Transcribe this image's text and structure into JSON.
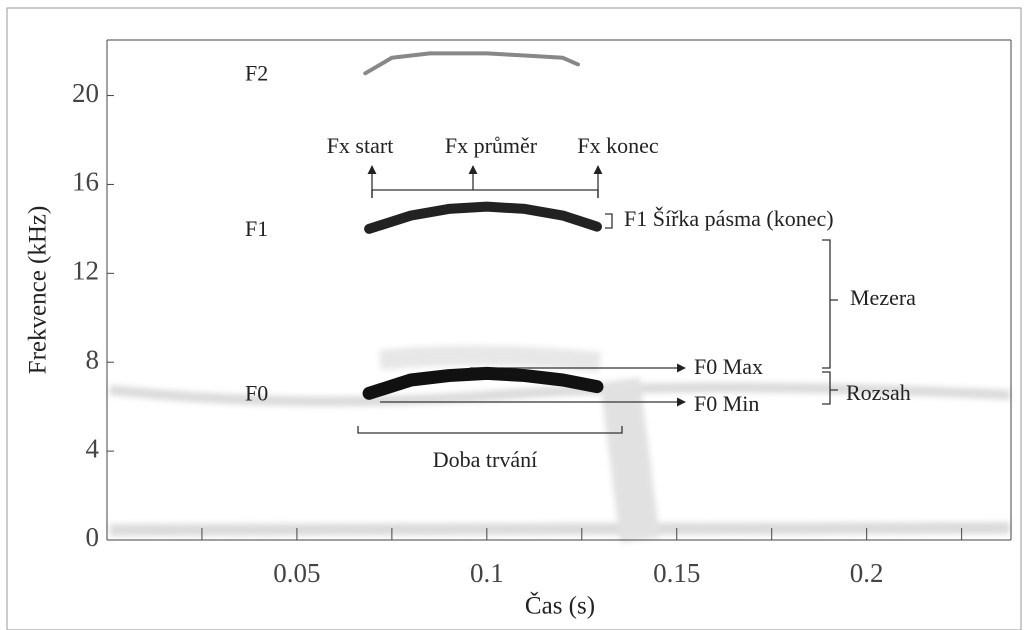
{
  "chart_data": {
    "type": "line",
    "xlabel": "Čas (s)",
    "ylabel": "Frekvence (kHz)",
    "xlim": [
      0,
      0.238
    ],
    "xticks": [
      0.05,
      0.1,
      0.15,
      0.2
    ],
    "xminorticks": [
      0.025,
      0.075,
      0.125,
      0.175,
      0.225
    ],
    "ylim": [
      0,
      22.5
    ],
    "yticks": [
      0,
      4,
      8,
      12,
      16,
      20
    ],
    "series": [
      {
        "name": "F0",
        "color": "#111111",
        "x": [
          0.069,
          0.08,
          0.09,
          0.1,
          0.11,
          0.12,
          0.129
        ],
        "values": [
          6.6,
          7.2,
          7.4,
          7.5,
          7.4,
          7.2,
          6.9
        ]
      },
      {
        "name": "F1",
        "color": "#222222",
        "x": [
          0.069,
          0.08,
          0.09,
          0.1,
          0.11,
          0.12,
          0.129
        ],
        "values": [
          14.0,
          14.6,
          14.9,
          15.0,
          14.9,
          14.6,
          14.1
        ]
      },
      {
        "name": "F2",
        "color": "#888888",
        "x": [
          0.068,
          0.075,
          0.085,
          0.1,
          0.11,
          0.12,
          0.124
        ],
        "values": [
          21.0,
          21.7,
          21.9,
          21.9,
          21.8,
          21.7,
          21.4
        ]
      }
    ],
    "annotations": [
      "Fx start",
      "Fx průměr",
      "Fx konec",
      "F1 Šířka pásma (konec)",
      "Mezera",
      "Rozsah",
      "F0 Max",
      "F0 Min",
      "Doba trvání"
    ]
  }
}
